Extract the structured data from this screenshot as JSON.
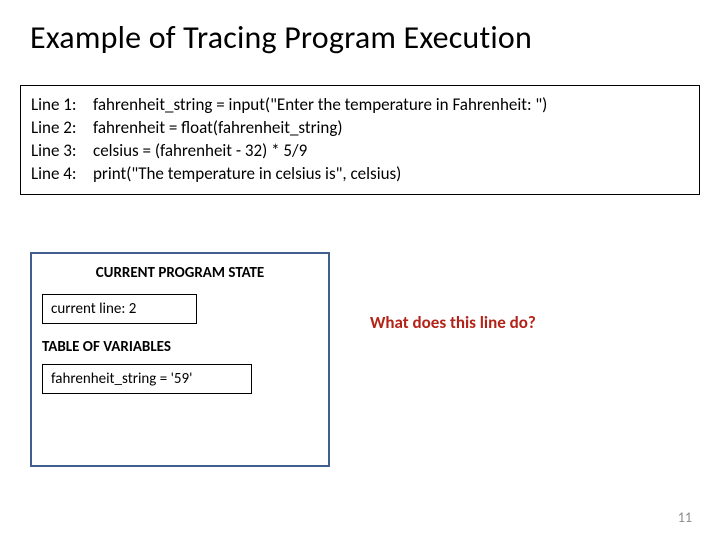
{
  "title": "Example of Tracing Program Execution",
  "code": {
    "lines": [
      {
        "label": "Line 1:",
        "text": "fahrenheit_string = input(\"Enter the temperature in Fahrenheit: \")"
      },
      {
        "label": "Line 2:",
        "text": "fahrenheit = float(fahrenheit_string)"
      },
      {
        "label": "Line 3:",
        "text": "celsius = (fahrenheit - 32) * 5/9"
      },
      {
        "label": "Line 4:",
        "text": "print(\"The temperature in celsius is\", celsius)"
      }
    ]
  },
  "state": {
    "heading": "CURRENT PROGRAM STATE",
    "current_line_label": "current line: 2",
    "table_label": "TABLE OF VARIABLES",
    "variables": [
      "fahrenheit_string = '59'"
    ],
    "border_color": "#405f8f"
  },
  "question": "What does this line do?",
  "question_color": "#b32317",
  "page_number": "11",
  "typography": {
    "title_fontsize": 32,
    "body_fontsize": 17,
    "state_fontsize": 15
  },
  "colors": {
    "background": "#ffffff",
    "text": "#000000",
    "page_number": "#8a8a8a"
  }
}
